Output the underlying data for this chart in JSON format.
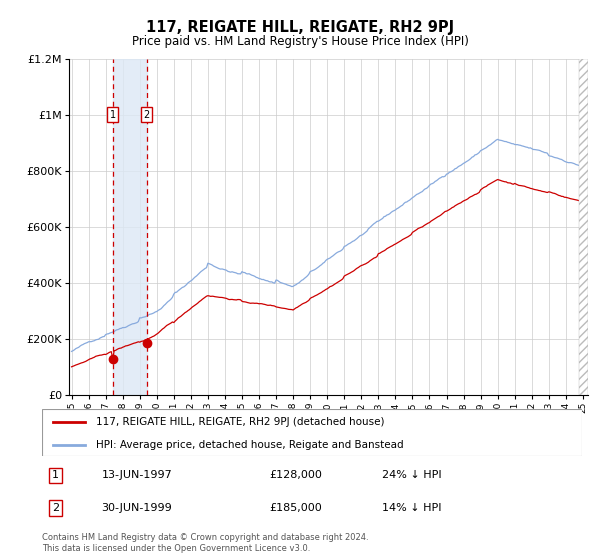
{
  "title": "117, REIGATE HILL, REIGATE, RH2 9PJ",
  "subtitle": "Price paid vs. HM Land Registry's House Price Index (HPI)",
  "ylim": [
    0,
    1200000
  ],
  "yticks": [
    0,
    200000,
    400000,
    600000,
    800000,
    1000000,
    1200000
  ],
  "ytick_labels": [
    "£0",
    "£200K",
    "£400K",
    "£600K",
    "£800K",
    "£1M",
    "£1.2M"
  ],
  "x_start_year": 1995,
  "x_end_year": 2025,
  "transaction1": {
    "date": "13-JUN-1997",
    "year_idx": 29,
    "price": 128000,
    "label": "1",
    "pct": "24%",
    "dir": "↓"
  },
  "transaction2": {
    "date": "30-JUN-1999",
    "year_idx": 53,
    "price": 185000,
    "label": "2",
    "pct": "14%",
    "dir": "↓"
  },
  "red_line_color": "#cc0000",
  "blue_line_color": "#88aadd",
  "blue_span_color": "#dde8f5",
  "marker_color": "#cc0000",
  "vline_color": "#cc0000",
  "box_color": "#cc0000",
  "grid_color": "#cccccc",
  "bg_color": "#ffffff",
  "legend_line1": "117, REIGATE HILL, REIGATE, RH2 9PJ (detached house)",
  "legend_line2": "HPI: Average price, detached house, Reigate and Banstead",
  "footer": "Contains HM Land Registry data © Crown copyright and database right 2024.\nThis data is licensed under the Open Government Licence v3.0."
}
